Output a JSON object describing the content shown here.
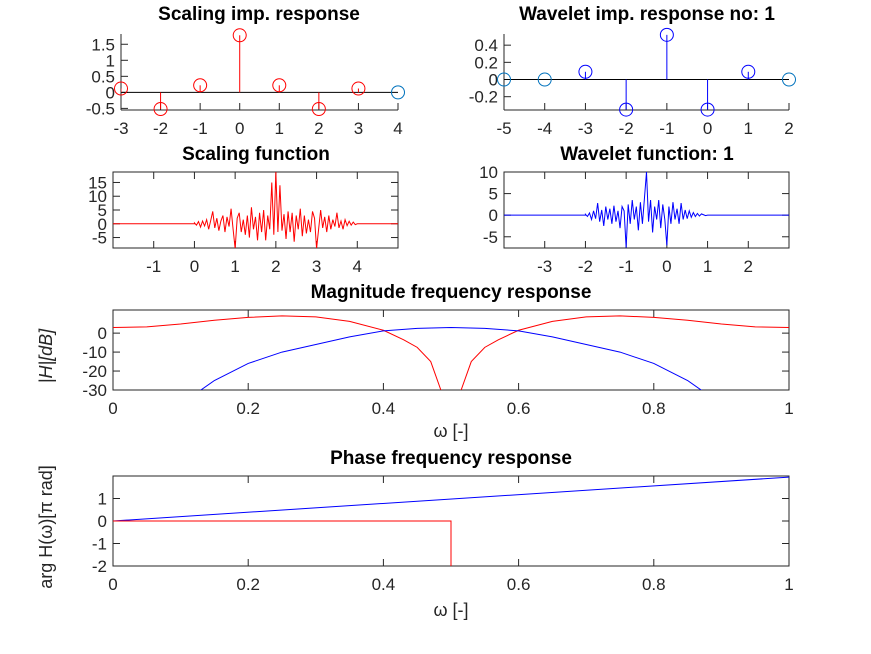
{
  "chart_data": [
    {
      "type": "stem",
      "title": "Scaling imp. response",
      "xlim": [
        -3,
        4
      ],
      "ylim": [
        -0.55,
        1.82
      ],
      "xticks": [
        -3,
        -2,
        -1,
        0,
        1,
        2,
        3,
        4
      ],
      "yticks": [
        -0.5,
        0,
        0.5,
        1,
        1.5
      ],
      "ytick_labels": [
        "-0.5",
        "0",
        "0.5",
        "1",
        "1.5"
      ],
      "x": [
        -3,
        -2,
        -1,
        0,
        1,
        2,
        3,
        4
      ],
      "values": [
        0.12,
        -0.52,
        0.22,
        1.78,
        0.22,
        -0.52,
        0.12,
        0
      ],
      "marker_colors": [
        "#ff0000",
        "#ff0000",
        "#ff0000",
        "#ff0000",
        "#ff0000",
        "#ff0000",
        "#ff0000",
        "#0072bd"
      ],
      "color": "#ff0000"
    },
    {
      "type": "stem",
      "title": "Wavelet imp. response no: 1",
      "xlim": [
        -5,
        2
      ],
      "ylim": [
        -0.355,
        0.53
      ],
      "xticks": [
        -5,
        -4,
        -3,
        -2,
        -1,
        0,
        1,
        2
      ],
      "yticks": [
        -0.2,
        0,
        0.2,
        0.4
      ],
      "ytick_labels": [
        "-0.2",
        "0",
        "0.2",
        "0.4"
      ],
      "x": [
        -5,
        -4,
        -3,
        -2,
        -1,
        0,
        1,
        2
      ],
      "values": [
        0,
        0,
        0.09,
        -0.35,
        0.52,
        -0.35,
        0.09,
        0
      ],
      "marker_colors": [
        "#0072bd",
        "#0072bd",
        "#0000ff",
        "#0000ff",
        "#0000ff",
        "#0000ff",
        "#0000ff",
        "#0072bd"
      ],
      "color": "#0000ff"
    },
    {
      "type": "line",
      "title": "Scaling function",
      "xlim": [
        -2,
        5
      ],
      "ylim": [
        -8.8,
        18.8
      ],
      "xticks": [
        -1,
        0,
        1,
        2,
        3,
        4
      ],
      "yticks": [
        -5,
        0,
        5,
        10,
        15
      ],
      "ytick_labels": [
        "-5",
        "0",
        "5",
        "10",
        "15"
      ],
      "x_start": 0,
      "x_step": 0.05,
      "values": [
        0.3,
        -0.5,
        0.8,
        -1.2,
        1.0,
        -0.8,
        1.5,
        -2,
        1.2,
        4.5,
        -1.5,
        2,
        -2.5,
        1,
        3,
        -3,
        2.5,
        -1,
        5.5,
        -2,
        -9,
        2,
        4,
        -3,
        1.5,
        -4,
        3,
        -5,
        6,
        -2,
        2.5,
        -6,
        4,
        -3,
        5,
        -6,
        3,
        -2,
        15,
        -4,
        18.8,
        -3,
        14,
        -2.5,
        3.5,
        -5.5,
        4.5,
        -3,
        4,
        -6.5,
        3,
        -2,
        5.5,
        -4.5,
        3,
        -3.5,
        1.5,
        -3,
        4.5,
        2,
        -9,
        -2,
        5,
        -1.5,
        2.5,
        -3,
        3,
        -2,
        1.5,
        -1,
        4,
        -1.5,
        1,
        -2,
        1.5,
        -0.7,
        0.9,
        -0.5,
        0.6,
        -0.3,
        0
      ],
      "color": "#ff0000"
    },
    {
      "type": "line",
      "title": "Wavelet function: 1",
      "xlim": [
        -4,
        3
      ],
      "ylim": [
        -7.6,
        10
      ],
      "xticks": [
        -3,
        -2,
        -1,
        0,
        1,
        2
      ],
      "yticks": [
        -5,
        0,
        5,
        10
      ],
      "ytick_labels": [
        "-5",
        "0",
        "5",
        "10"
      ],
      "x_start": -2,
      "x_step": 0.05,
      "values": [
        0.2,
        -0.3,
        0.5,
        -1,
        1,
        -0.8,
        2.8,
        -1.5,
        1.2,
        -2.5,
        2,
        -1,
        1.5,
        -2,
        2.2,
        -1.5,
        1,
        -3,
        2,
        1,
        -7.5,
        2.5,
        -2,
        3.5,
        -1,
        2,
        -3.5,
        3,
        -2,
        4,
        10,
        -1.5,
        3.5,
        -4,
        2,
        -1,
        3.5,
        -3,
        2.5,
        -1,
        -7,
        2,
        -2,
        3,
        -1,
        1.5,
        -2,
        2.8,
        -1,
        1.2,
        -0.8,
        1,
        -0.5,
        0.6,
        -0.3,
        0.4,
        -0.2,
        0.3,
        0.1,
        -0.1,
        0
      ],
      "color": "#0000ff"
    },
    {
      "type": "line",
      "title": "Magnitude frequency response",
      "xlabel": "ω [-]",
      "ylabel": "|H|[dB]",
      "xlim": [
        0,
        1
      ],
      "ylim": [
        -30,
        12.2
      ],
      "xticks": [
        0,
        0.2,
        0.4,
        0.6,
        0.8,
        1
      ],
      "xtick_labels": [
        "0",
        "0.2",
        "0.4",
        "0.6",
        "0.8",
        "1"
      ],
      "yticks": [
        -30,
        -20,
        -10,
        0
      ],
      "ytick_labels": [
        "-30",
        "-20",
        "-10",
        "0"
      ],
      "series": [
        {
          "color": "#ff0000",
          "x": [
            0,
            0.05,
            0.1,
            0.15,
            0.2,
            0.25,
            0.3,
            0.35,
            0.4,
            0.43,
            0.45,
            0.47,
            0.485,
            0.495,
            0.505,
            0.515,
            0.53,
            0.55,
            0.57,
            0.6,
            0.65,
            0.7,
            0.75,
            0.8,
            0.85,
            0.9,
            0.95,
            1
          ],
          "y": [
            3,
            3.3,
            4.8,
            6.8,
            8.3,
            9.1,
            8.6,
            6.2,
            1.5,
            -3.5,
            -7.5,
            -15,
            -30,
            -45,
            -45,
            -30,
            -15,
            -7.5,
            -3.5,
            1.5,
            6.2,
            8.6,
            9.1,
            8.3,
            6.8,
            4.8,
            3.3,
            3
          ]
        },
        {
          "color": "#0000ff",
          "x": [
            0.1,
            0.13,
            0.15,
            0.2,
            0.25,
            0.3,
            0.35,
            0.4,
            0.45,
            0.5,
            0.55,
            0.6,
            0.65,
            0.7,
            0.75,
            0.8,
            0.85,
            0.87,
            0.9
          ],
          "y": [
            -40,
            -30,
            -25,
            -16,
            -10,
            -6,
            -2,
            1.2,
            2.5,
            3,
            2.5,
            1.2,
            -2,
            -6,
            -10,
            -16,
            -25,
            -30,
            -40
          ]
        }
      ]
    },
    {
      "type": "line",
      "title": "Phase frequency response",
      "xlabel": "ω [-]",
      "ylabel": "arg H(ω)[π rad]",
      "xlim": [
        0,
        1
      ],
      "ylim": [
        -2,
        2
      ],
      "xticks": [
        0,
        0.2,
        0.4,
        0.6,
        0.8,
        1
      ],
      "xtick_labels": [
        "0",
        "0.2",
        "0.4",
        "0.6",
        "0.8",
        "1"
      ],
      "yticks": [
        -2,
        -1,
        0,
        1
      ],
      "ytick_labels": [
        "-2",
        "-1",
        "0",
        "1"
      ],
      "series": [
        {
          "color": "#0000ff",
          "x": [
            0,
            1
          ],
          "y": [
            0,
            1.95
          ]
        },
        {
          "color": "#ff0000",
          "x": [
            0,
            0.5,
            0.5
          ],
          "y": [
            0,
            0,
            -2
          ]
        }
      ]
    }
  ]
}
